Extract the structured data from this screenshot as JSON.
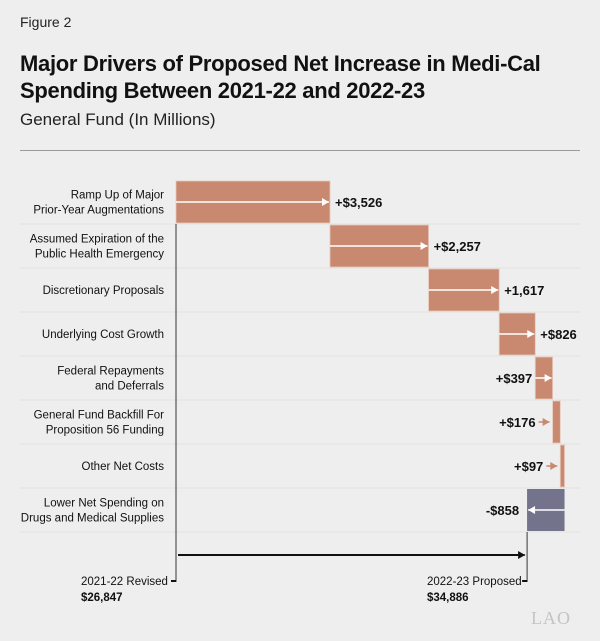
{
  "figure_label": "Figure 2",
  "chart_data": {
    "type": "waterfall",
    "title": "Major Drivers of Proposed Net Increase in Medi-Cal Spending Between 2021-22 and 2022-23",
    "subtitle": "General Fund (In Millions)",
    "start": {
      "label": "2021-22 Revised",
      "value": 26847,
      "value_label": "$26,847"
    },
    "end": {
      "label": "2022-23 Proposed",
      "value": 34886,
      "value_label": "$34,886"
    },
    "categories": [
      [
        "Ramp Up of Major",
        "Prior-Year Augmentations"
      ],
      [
        "Assumed Expiration of the",
        "Public Health Emergency"
      ],
      [
        "Discretionary Proposals"
      ],
      [
        "Underlying Cost Growth"
      ],
      [
        "Federal Repayments",
        "and Deferrals"
      ],
      [
        "General Fund Backfill For",
        "Proposition 56 Funding"
      ],
      [
        "Other Net Costs"
      ],
      [
        "Lower Net Spending on",
        "Drugs and Medical Supplies"
      ]
    ],
    "values": [
      3526,
      2257,
      1617,
      826,
      397,
      176,
      97,
      -858
    ],
    "data_labels": [
      "+$3,526",
      "+$2,257",
      "+1,617",
      "+$826",
      "+$397",
      "+$176",
      "+$97",
      "-$858"
    ],
    "colors": {
      "increase": "#c98870",
      "decrease": "#73738b"
    }
  },
  "watermark": "LAO"
}
